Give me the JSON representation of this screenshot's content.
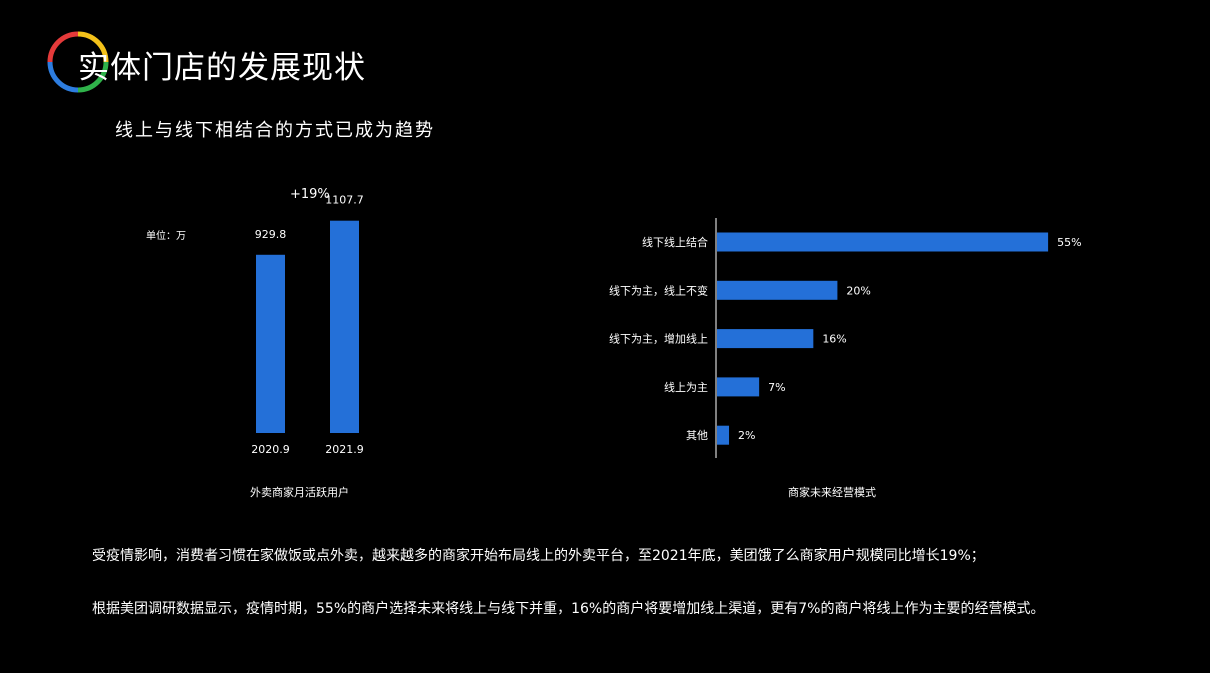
{
  "page": {
    "title": "实体门店的发展现状",
    "subtitle": "线上与线下相结合的方式已成为趋势",
    "paragraphs": [
      "受疫情影响，消费者习惯在家做饭或点外卖，越来越多的商家开始布局线上的外卖平台，至2021年底，美团饿了么商家用户规模同比增长19%；",
      "根据美团调研数据显示，疫情时期，55%的商户选择未来将线上与线下并重，16%的商户将要增加线上渠道，更有7%的商户将线上作为主要的经营模式。"
    ]
  },
  "chart_data": [
    {
      "type": "bar",
      "title": "外卖商家月活跃用户",
      "unit_label": "单位：万",
      "annotation": "+19%",
      "categories": [
        "2020.9",
        "2021.9"
      ],
      "values": [
        929.8,
        1107.7
      ],
      "value_labels": [
        "929.8",
        "1107.7"
      ],
      "ylim": [
        0,
        1200
      ],
      "bar_color": "#2470d8",
      "grid": false
    },
    {
      "type": "bar",
      "orientation": "horizontal",
      "title": "商家未来经营模式",
      "categories": [
        "线下线上结合",
        "线下为主，线上不变",
        "线下为主，增加线上",
        "线上为主",
        "其他"
      ],
      "values": [
        55,
        20,
        16,
        7,
        2
      ],
      "value_labels": [
        "55%",
        "20%",
        "16%",
        "7%",
        "2%"
      ],
      "xlim": [
        0,
        60
      ],
      "bar_color": "#2470d8",
      "grid": false
    }
  ]
}
